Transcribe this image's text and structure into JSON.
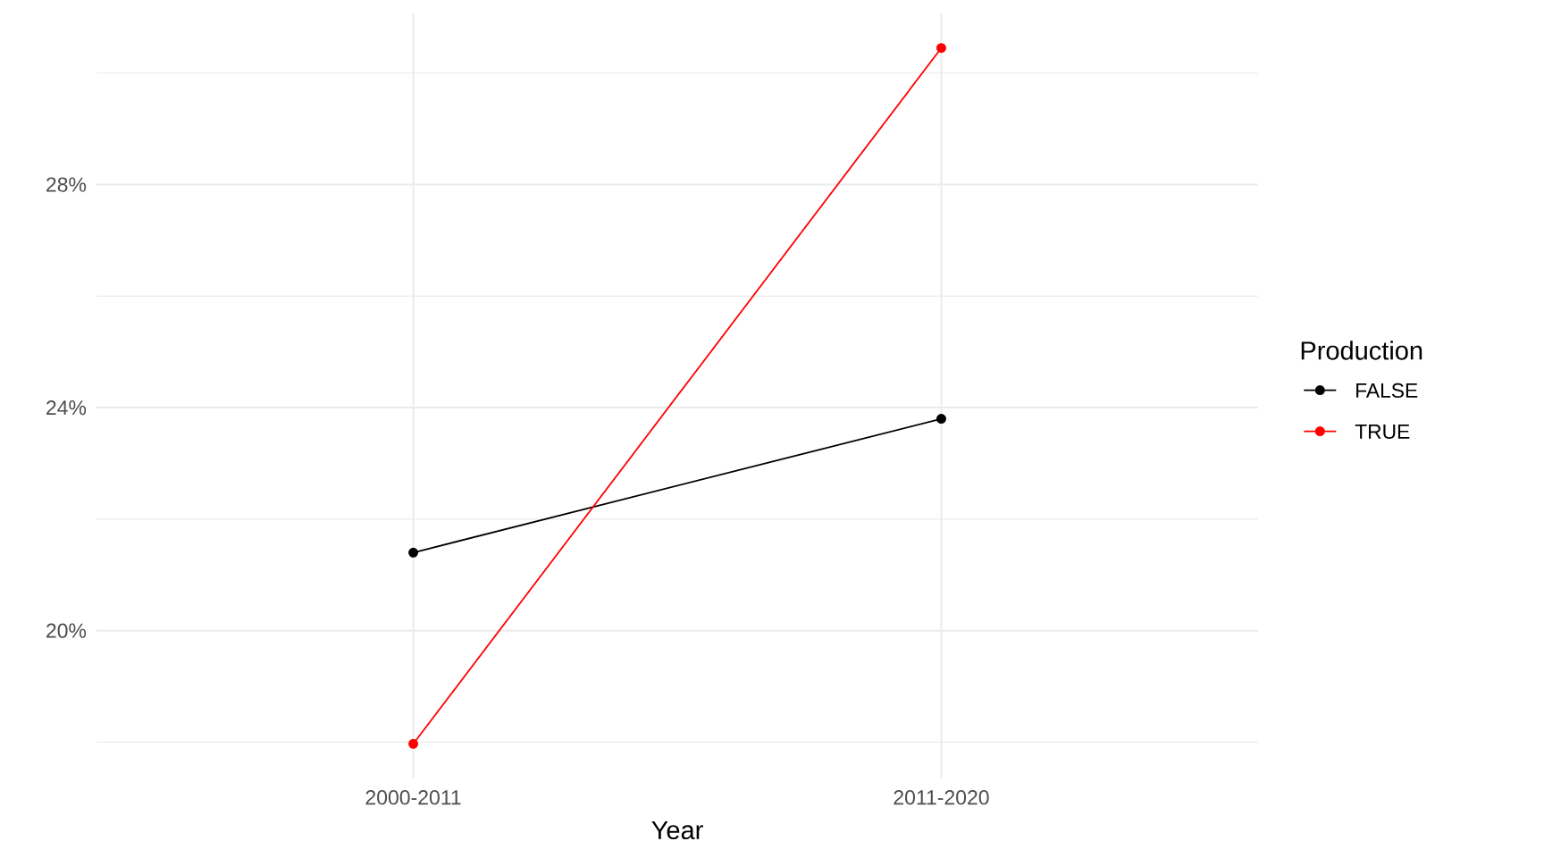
{
  "chart_data": {
    "type": "line",
    "xlabel": "Year",
    "legend_title": "Production",
    "categories": [
      "2000-2011",
      "2011-2020"
    ],
    "series": [
      {
        "name": "FALSE",
        "color": "#000000",
        "values": [
          21.4,
          23.8
        ]
      },
      {
        "name": "TRUE",
        "color": "#ff0000",
        "values": [
          17.97,
          30.45
        ]
      }
    ],
    "ylim": [
      17.35,
      31.07
    ],
    "yticks": [
      {
        "value": 18,
        "label": null
      },
      {
        "value": 20,
        "label": "20%"
      },
      {
        "value": 22,
        "label": null
      },
      {
        "value": 24,
        "label": "24%"
      },
      {
        "value": 26,
        "label": null
      },
      {
        "value": 28,
        "label": "28%"
      },
      {
        "value": 30,
        "label": null
      }
    ],
    "grid": true,
    "legend": "right",
    "marker": "circle",
    "line_style": "solid"
  }
}
